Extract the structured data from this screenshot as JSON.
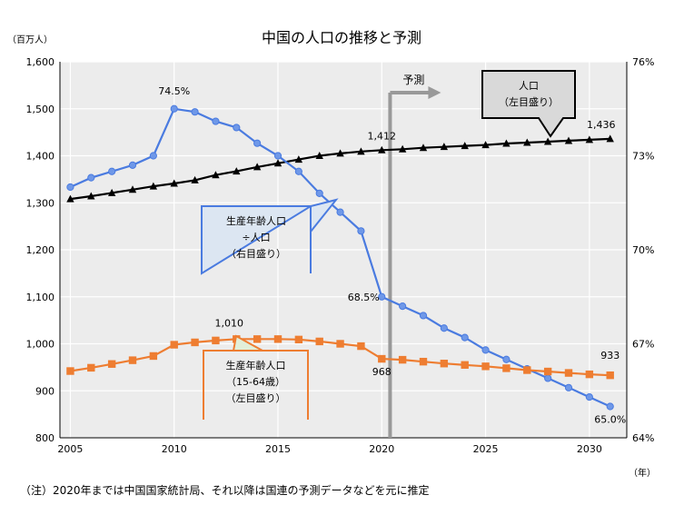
{
  "chart_data": {
    "type": "line",
    "title": "中国の人口の推移と予測",
    "y_left_unit": "（百万人）",
    "y_right_unit": "",
    "x_unit": "（年）",
    "ylim_left": [
      800,
      1600
    ],
    "ylim_right": [
      64,
      76
    ],
    "y_left_ticks": [
      "800",
      "900",
      "1,000",
      "1,100",
      "1,200",
      "1,300",
      "1,400",
      "1,500",
      "1,600"
    ],
    "y_right_ticks": [
      "64%",
      "67%",
      "70%",
      "73%",
      "76%"
    ],
    "x_ticks": [
      "2005",
      "2010",
      "2015",
      "2020",
      "2025",
      "2030"
    ],
    "grid": true,
    "forecast_label": "予測",
    "forecast_start_year": 2020.4,
    "series": [
      {
        "name": "人口",
        "axis": "left",
        "color": "#000000",
        "marker": "triangle",
        "x": [
          2005,
          2006,
          2007,
          2008,
          2009,
          2010,
          2011,
          2012,
          2013,
          2014,
          2015,
          2016,
          2017,
          2018,
          2019,
          2020,
          2021,
          2022,
          2023,
          2024,
          2025,
          2026,
          2027,
          2028,
          2029,
          2030,
          2031
        ],
        "values": [
          1308,
          1314,
          1321,
          1328,
          1335,
          1341,
          1348,
          1359,
          1367,
          1376,
          1384,
          1392,
          1400,
          1405,
          1409,
          1412,
          1414,
          1417,
          1419,
          1421,
          1423,
          1426,
          1428,
          1430,
          1432,
          1434,
          1436
        ]
      },
      {
        "name": "生産年齢人口÷人口",
        "axis": "right",
        "color": "#4a7be0",
        "marker": "circle",
        "x": [
          2005,
          2006,
          2007,
          2008,
          2009,
          2010,
          2011,
          2012,
          2013,
          2014,
          2015,
          2016,
          2017,
          2018,
          2019,
          2020,
          2021,
          2022,
          2023,
          2024,
          2025,
          2026,
          2027,
          2028,
          2029,
          2030,
          2031
        ],
        "values": [
          72.0,
          72.3,
          72.5,
          72.7,
          73.0,
          74.5,
          74.4,
          74.1,
          73.9,
          73.4,
          73.0,
          72.5,
          71.8,
          71.2,
          70.6,
          68.5,
          68.2,
          67.9,
          67.5,
          67.2,
          66.8,
          66.5,
          66.2,
          65.9,
          65.6,
          65.3,
          65.0
        ]
      },
      {
        "name": "生産年齢人口（15-64歳）",
        "axis": "left",
        "color": "#ee7d31",
        "marker": "square",
        "x": [
          2005,
          2006,
          2007,
          2008,
          2009,
          2010,
          2011,
          2012,
          2013,
          2014,
          2015,
          2016,
          2017,
          2018,
          2019,
          2020,
          2021,
          2022,
          2023,
          2024,
          2025,
          2026,
          2027,
          2028,
          2029,
          2030,
          2031
        ],
        "values": [
          942,
          949,
          957,
          965,
          974,
          998,
          1003,
          1007,
          1010,
          1010,
          1010,
          1009,
          1005,
          1000,
          995,
          968,
          966,
          962,
          958,
          955,
          952,
          948,
          944,
          941,
          938,
          935,
          933
        ]
      }
    ],
    "data_labels": [
      {
        "series": 1,
        "index": 5,
        "text": "74.5%"
      },
      {
        "series": 1,
        "index": 15,
        "text": "68.5%"
      },
      {
        "series": 1,
        "index": 26,
        "text": "65.0%"
      },
      {
        "series": 0,
        "index": 15,
        "text": "1,412"
      },
      {
        "series": 0,
        "index": 26,
        "text": "1,436"
      },
      {
        "series": 2,
        "index": 8,
        "text": "1,010"
      },
      {
        "series": 2,
        "index": 15,
        "text": "968"
      },
      {
        "series": 2,
        "index": 26,
        "text": "933"
      }
    ],
    "callouts": {
      "pop": [
        "人口",
        "（左目盛り）"
      ],
      "ratio": [
        "生産年齢人口",
        "÷人口",
        "（右目盛り）"
      ],
      "work": [
        "生産年齢人口",
        "（15-64歳）",
        "（左目盛り）"
      ]
    },
    "footnote": "（注）2020年までは中国国家統計局、それ以降は国連の予測データなどを元に推定"
  }
}
